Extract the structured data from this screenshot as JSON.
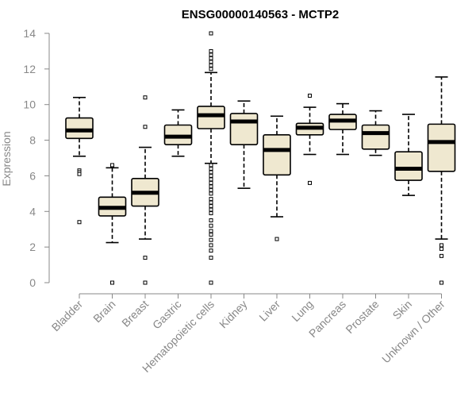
{
  "chart_data": {
    "type": "boxplot",
    "title": "ENSG00000140563 - MCTP2",
    "xlabel": "",
    "ylabel": "Expression",
    "ylim": [
      0,
      14
    ],
    "yticks": [
      0,
      2,
      4,
      6,
      8,
      10,
      12,
      14
    ],
    "grid": false,
    "colors": {
      "box_fill": "#efe8d0",
      "box_stroke": "#000000",
      "median": "#000000",
      "axis": "#888888"
    },
    "categories": [
      "Bladder",
      "Brain",
      "Breast",
      "Gastric",
      "Hematopoietic cells",
      "Kidney",
      "Liver",
      "Lung",
      "Pancreas",
      "Prostate",
      "Skin",
      "Unknown / Other"
    ],
    "boxes": [
      {
        "q1": 8.1,
        "median": 8.55,
        "q3": 9.25,
        "whisker_low": 7.1,
        "whisker_high": 10.4,
        "outliers": [
          6.3,
          6.2,
          6.1,
          3.4
        ]
      },
      {
        "q1": 3.75,
        "median": 4.2,
        "q3": 4.8,
        "whisker_low": 2.25,
        "whisker_high": 6.45,
        "outliers": [
          6.6,
          0.0
        ]
      },
      {
        "q1": 4.3,
        "median": 5.05,
        "q3": 5.85,
        "whisker_low": 2.45,
        "whisker_high": 7.6,
        "outliers": [
          10.4,
          8.75,
          1.4,
          0.0
        ]
      },
      {
        "q1": 7.75,
        "median": 8.2,
        "q3": 8.85,
        "whisker_low": 7.1,
        "whisker_high": 9.7,
        "outliers": []
      },
      {
        "q1": 8.65,
        "median": 9.4,
        "q3": 9.9,
        "whisker_low": 6.7,
        "whisker_high": 11.8,
        "outliers": [
          14.0,
          13.0,
          12.8,
          12.6,
          12.4,
          12.2,
          12.0,
          6.6,
          6.4,
          6.2,
          6.0,
          5.8,
          5.6,
          5.4,
          5.2,
          5.0,
          4.7,
          4.5,
          4.3,
          4.1,
          3.9,
          3.5,
          3.2,
          2.9,
          2.7,
          2.4,
          2.1,
          1.8,
          1.4,
          0.0
        ]
      },
      {
        "q1": 7.75,
        "median": 9.05,
        "q3": 9.5,
        "whisker_low": 5.3,
        "whisker_high": 10.2,
        "outliers": []
      },
      {
        "q1": 6.05,
        "median": 7.45,
        "q3": 8.3,
        "whisker_low": 3.7,
        "whisker_high": 9.35,
        "outliers": [
          2.45
        ]
      },
      {
        "q1": 8.3,
        "median": 8.7,
        "q3": 8.95,
        "whisker_low": 7.2,
        "whisker_high": 9.85,
        "outliers": [
          10.5,
          5.6
        ]
      },
      {
        "q1": 8.6,
        "median": 9.1,
        "q3": 9.45,
        "whisker_low": 7.2,
        "whisker_high": 10.05,
        "outliers": []
      },
      {
        "q1": 7.5,
        "median": 8.4,
        "q3": 8.85,
        "whisker_low": 7.15,
        "whisker_high": 9.65,
        "outliers": []
      },
      {
        "q1": 5.75,
        "median": 6.4,
        "q3": 7.35,
        "whisker_low": 4.9,
        "whisker_high": 9.45,
        "outliers": []
      },
      {
        "q1": 6.25,
        "median": 7.9,
        "q3": 8.9,
        "whisker_low": 2.45,
        "whisker_high": 11.55,
        "outliers": [
          2.1,
          1.9,
          1.5,
          0.0
        ]
      }
    ]
  }
}
